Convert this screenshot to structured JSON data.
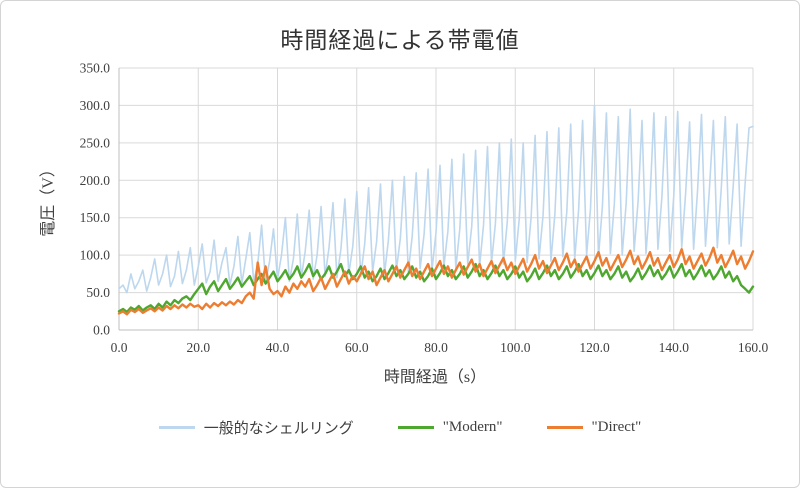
{
  "chart_data": {
    "type": "line",
    "title": "時間経過による帯電値",
    "xlabel": "時間経過（s）",
    "ylabel": "電圧（V）",
    "x_min": 0,
    "x_max": 160,
    "x_step": 1,
    "y_min": 0,
    "y_max": 350,
    "grid": true,
    "legend_position": "bottom",
    "x_ticks": {
      "values": [
        0,
        20,
        40,
        60,
        80,
        100,
        120,
        140,
        160
      ],
      "labels": [
        "0.0",
        "20.0",
        "40.0",
        "60.0",
        "80.0",
        "100.0",
        "120.0",
        "140.0",
        "160.0"
      ]
    },
    "y_ticks": {
      "values": [
        0,
        50,
        100,
        150,
        200,
        250,
        300,
        350
      ],
      "labels": [
        "0.0",
        "50.0",
        "100.0",
        "150.0",
        "200.0",
        "250.0",
        "300.0",
        "350.0"
      ]
    },
    "colors": {
      "grid": "#D9D9D9",
      "axis": "#BFBFBF",
      "text": "#404040"
    },
    "series": [
      {
        "name": "一般的なシェルリング",
        "color": "#BDD7EE",
        "width": 1.6,
        "values": [
          55,
          60,
          50,
          75,
          55,
          65,
          80,
          52,
          70,
          95,
          60,
          75,
          100,
          58,
          72,
          105,
          62,
          80,
          110,
          60,
          85,
          115,
          63,
          78,
          120,
          65,
          90,
          110,
          60,
          85,
          125,
          62,
          95,
          130,
          65,
          88,
          140,
          63,
          92,
          135,
          68,
          100,
          150,
          65,
          95,
          155,
          70,
          105,
          160,
          68,
          100,
          165,
          72,
          110,
          170,
          70,
          108,
          175,
          75,
          112,
          185,
          72,
          115,
          190,
          78,
          118,
          195,
          75,
          120,
          200,
          80,
          122,
          205,
          78,
          125,
          210,
          82,
          128,
          215,
          80,
          130,
          220,
          85,
          132,
          228,
          82,
          135,
          235,
          88,
          138,
          240,
          85,
          140,
          245,
          90,
          142,
          250,
          88,
          145,
          255,
          92,
          148,
          250,
          90,
          150,
          260,
          95,
          152,
          265,
          92,
          155,
          270,
          98,
          158,
          275,
          95,
          160,
          280,
          100,
          162,
          300,
          98,
          165,
          290,
          102,
          168,
          285,
          100,
          170,
          295,
          105,
          172,
          280,
          102,
          175,
          290,
          108,
          178,
          285,
          105,
          180,
          292,
          110,
          182,
          278,
          108,
          185,
          288,
          112,
          188,
          280,
          110,
          190,
          285,
          115,
          192,
          275,
          112,
          195,
          270,
          272
        ]
      },
      {
        "name": "\"Modern\"",
        "color": "#4EA72E",
        "width": 2.4,
        "values": [
          25,
          28,
          24,
          30,
          27,
          32,
          26,
          30,
          33,
          28,
          35,
          30,
          38,
          33,
          40,
          36,
          42,
          45,
          40,
          48,
          55,
          62,
          48,
          58,
          65,
          52,
          60,
          68,
          55,
          62,
          70,
          58,
          65,
          72,
          60,
          68,
          75,
          62,
          70,
          78,
          65,
          72,
          80,
          68,
          75,
          85,
          70,
          78,
          88,
          72,
          80,
          68,
          75,
          85,
          70,
          78,
          88,
          72,
          80,
          68,
          75,
          85,
          70,
          78,
          65,
          72,
          82,
          68,
          76,
          86,
          72,
          80,
          68,
          75,
          85,
          70,
          78,
          65,
          72,
          82,
          68,
          76,
          86,
          72,
          80,
          68,
          75,
          85,
          70,
          78,
          88,
          72,
          80,
          68,
          76,
          86,
          72,
          80,
          68,
          75,
          85,
          70,
          78,
          65,
          72,
          82,
          68,
          76,
          86,
          72,
          80,
          68,
          75,
          85,
          70,
          78,
          88,
          72,
          80,
          68,
          76,
          86,
          72,
          80,
          68,
          75,
          85,
          70,
          78,
          65,
          72,
          82,
          68,
          76,
          86,
          72,
          80,
          68,
          75,
          85,
          70,
          78,
          88,
          72,
          80,
          68,
          76,
          86,
          72,
          80,
          68,
          75,
          85,
          70,
          78,
          65,
          72,
          60,
          55,
          50,
          58
        ]
      },
      {
        "name": "\"Direct\"",
        "color": "#ED7D31",
        "width": 2.4,
        "values": [
          22,
          25,
          21,
          27,
          24,
          28,
          23,
          26,
          29,
          25,
          30,
          26,
          32,
          28,
          33,
          29,
          34,
          30,
          35,
          31,
          33,
          28,
          35,
          30,
          36,
          32,
          37,
          33,
          38,
          34,
          40,
          36,
          45,
          50,
          42,
          90,
          60,
          85,
          55,
          48,
          52,
          45,
          58,
          50,
          62,
          55,
          65,
          58,
          68,
          52,
          60,
          70,
          55,
          65,
          75,
          58,
          68,
          78,
          62,
          72,
          65,
          75,
          85,
          68,
          78,
          60,
          70,
          80,
          65,
          75,
          85,
          70,
          80,
          90,
          72,
          82,
          68,
          78,
          88,
          72,
          82,
          92,
          75,
          85,
          70,
          80,
          90,
          74,
          84,
          94,
          78,
          88,
          72,
          82,
          92,
          76,
          86,
          96,
          80,
          90,
          75,
          85,
          95,
          78,
          88,
          100,
          82,
          92,
          76,
          86,
          96,
          80,
          90,
          102,
          84,
          94,
          78,
          88,
          98,
          82,
          92,
          104,
          86,
          96,
          80,
          90,
          100,
          84,
          94,
          106,
          88,
          98,
          82,
          92,
          104,
          86,
          96,
          80,
          90,
          100,
          84,
          94,
          108,
          88,
          98,
          82,
          92,
          102,
          86,
          96,
          110,
          90,
          100,
          84,
          94,
          106,
          88,
          98,
          82,
          92,
          105
        ]
      }
    ]
  }
}
